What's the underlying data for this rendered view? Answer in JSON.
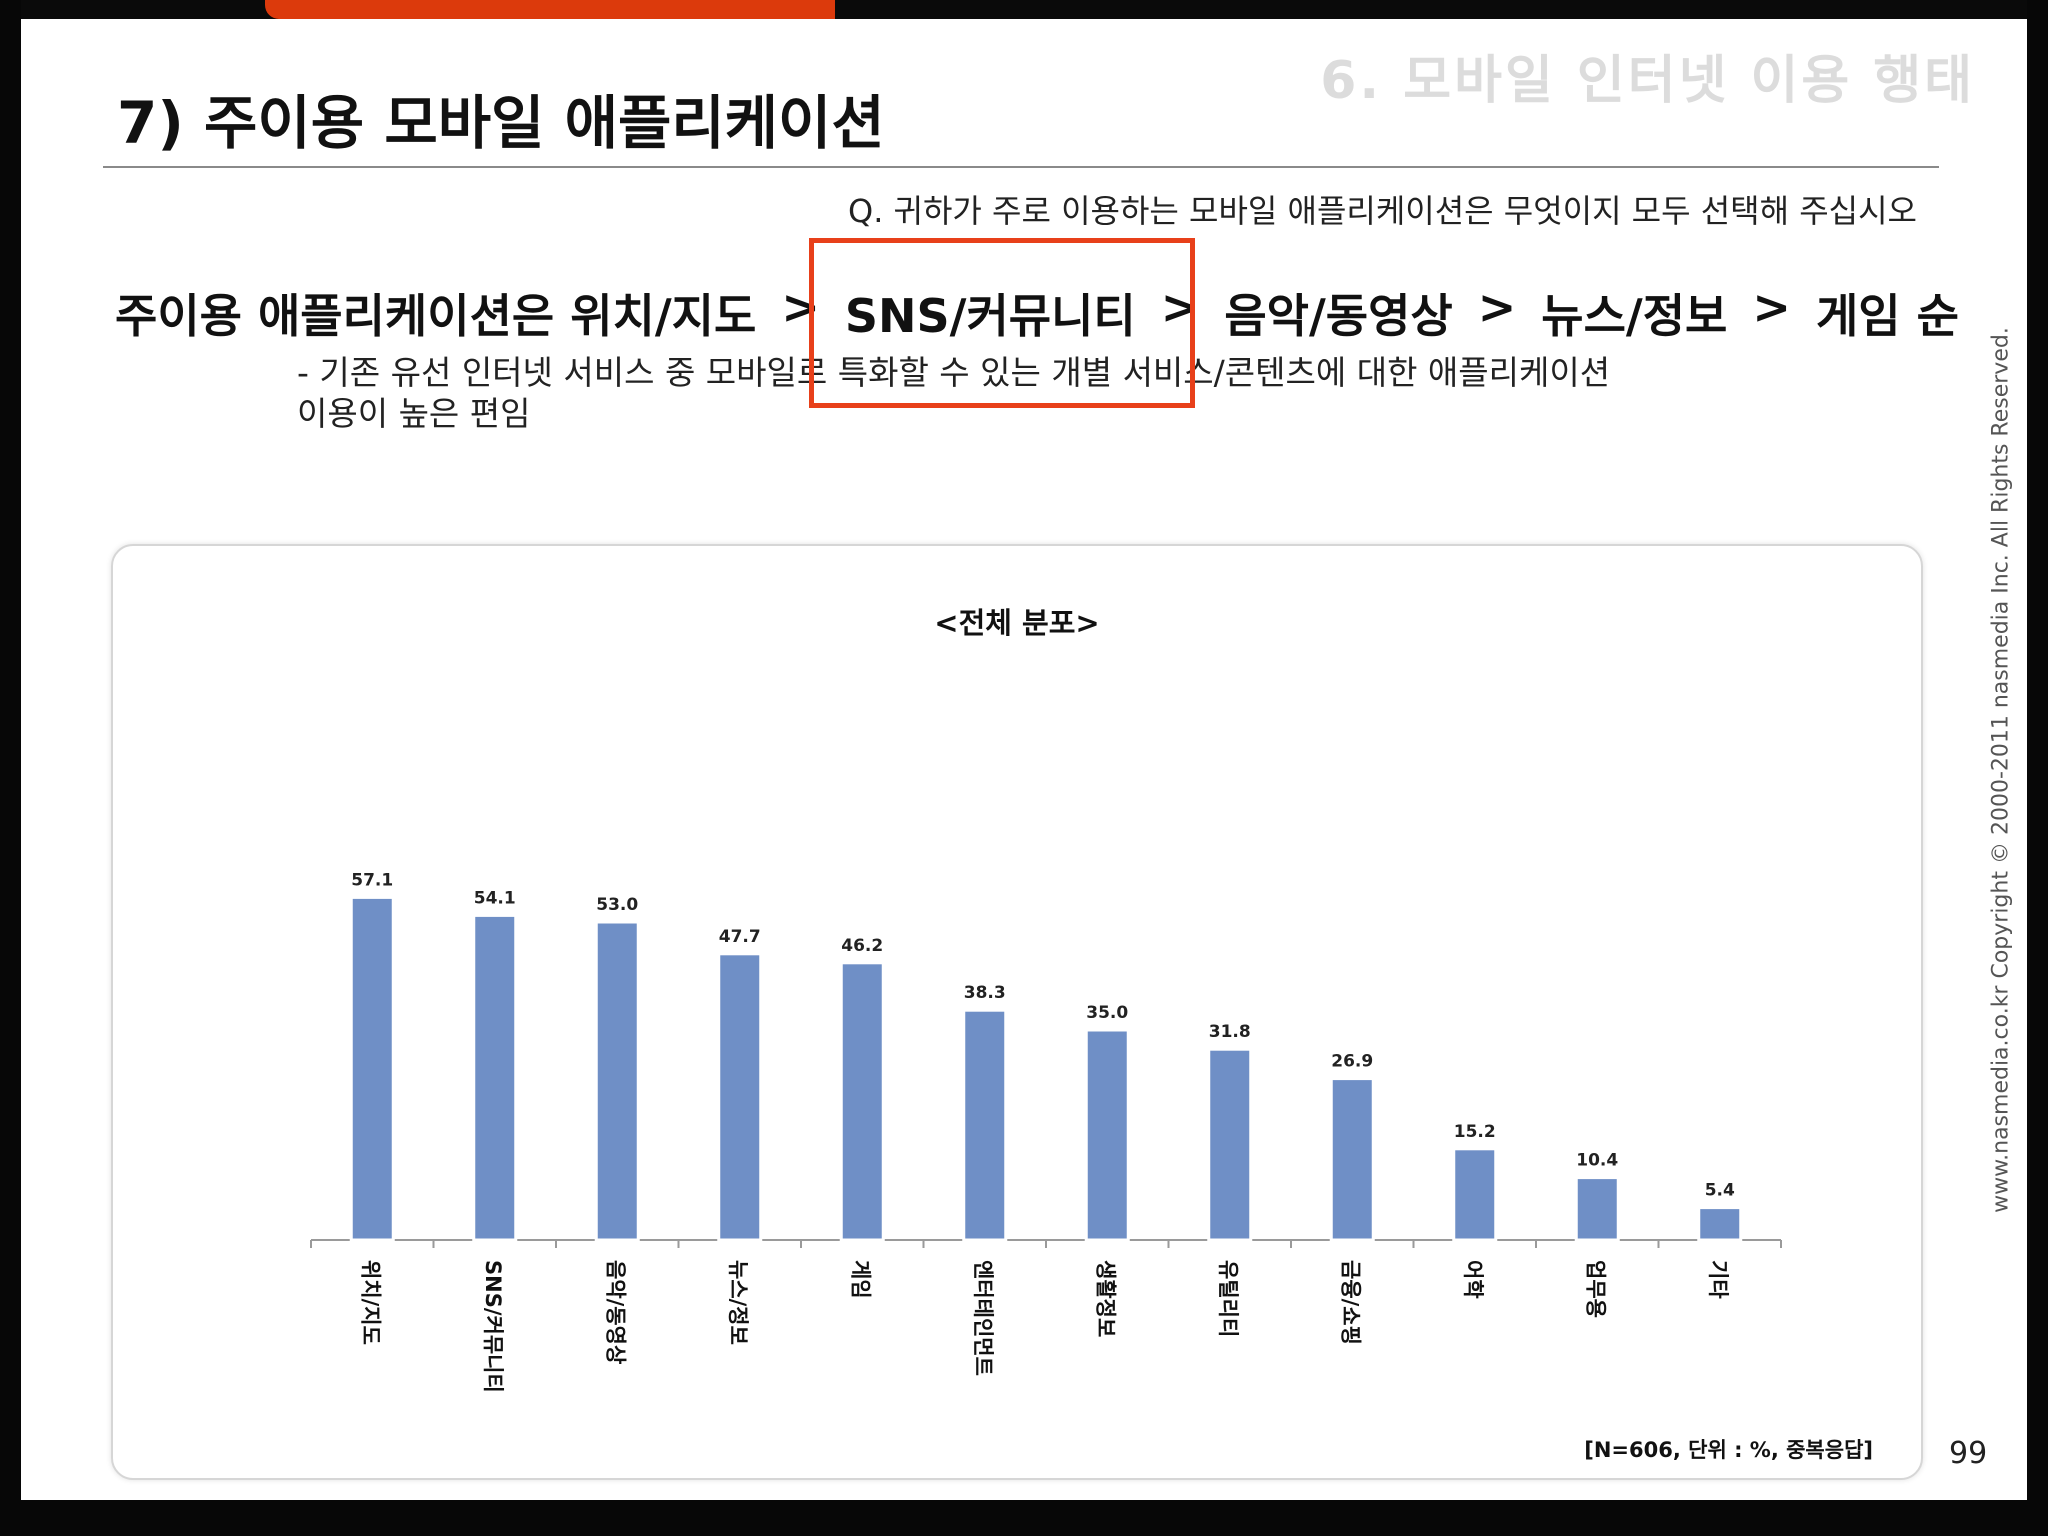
{
  "header": {
    "section_label": "6. 모바일 인터넷 이용 행태",
    "title": "7) 주이용 모바일 애플리케이션",
    "question": "Q. 귀하가 주로 이용하는 모바일 애플리케이션은 무엇이지 모두 선택해 주십시오"
  },
  "headline": {
    "parts": [
      "주이용 애플리케이션은 위치/지도",
      ">",
      "SNS/커뮤니티",
      ">",
      "음악/동영상",
      ">",
      "뉴스/정보",
      ">",
      "게임 순"
    ]
  },
  "description": {
    "line1": "- 기존 유선 인터넷 서비스 중 모바일로 특화할 수 있는 개별 서비스/콘텐츠에 대한 애플리케이션",
    "line2": "이용이 높은 편임"
  },
  "copyright": "www.nasmedia.co.kr  Copyright © 2000-2011 nasmedia Inc. All Rights Reserved.",
  "page_number": "99",
  "colors": {
    "accent": "#dc3a0c",
    "bar": "#6f8fc6",
    "highlight": "#e8401a"
  },
  "chart_data": {
    "type": "bar",
    "title": "<전체 분포>",
    "categories": [
      "위치/지도",
      "SNS/커뮤니티",
      "음악/동영상",
      "뉴스/정보",
      "게임",
      "엔터테인먼트",
      "생활정보",
      "유틸리티",
      "금융/쇼핑",
      "어학",
      "업무용",
      "기타"
    ],
    "values": [
      57.1,
      54.1,
      53.0,
      47.7,
      46.2,
      38.3,
      35.0,
      31.8,
      26.9,
      15.2,
      10.4,
      5.4
    ],
    "value_labels": [
      "57.1",
      "54.1",
      "53.0",
      "47.7",
      "46.2",
      "38.3",
      "35.0",
      "31.8",
      "26.9",
      "15.2",
      "10.4",
      "5.4"
    ],
    "ylim": [
      0,
      60
    ],
    "grid": false,
    "note": "[N=606, 단위 : %, 중복응답]"
  }
}
